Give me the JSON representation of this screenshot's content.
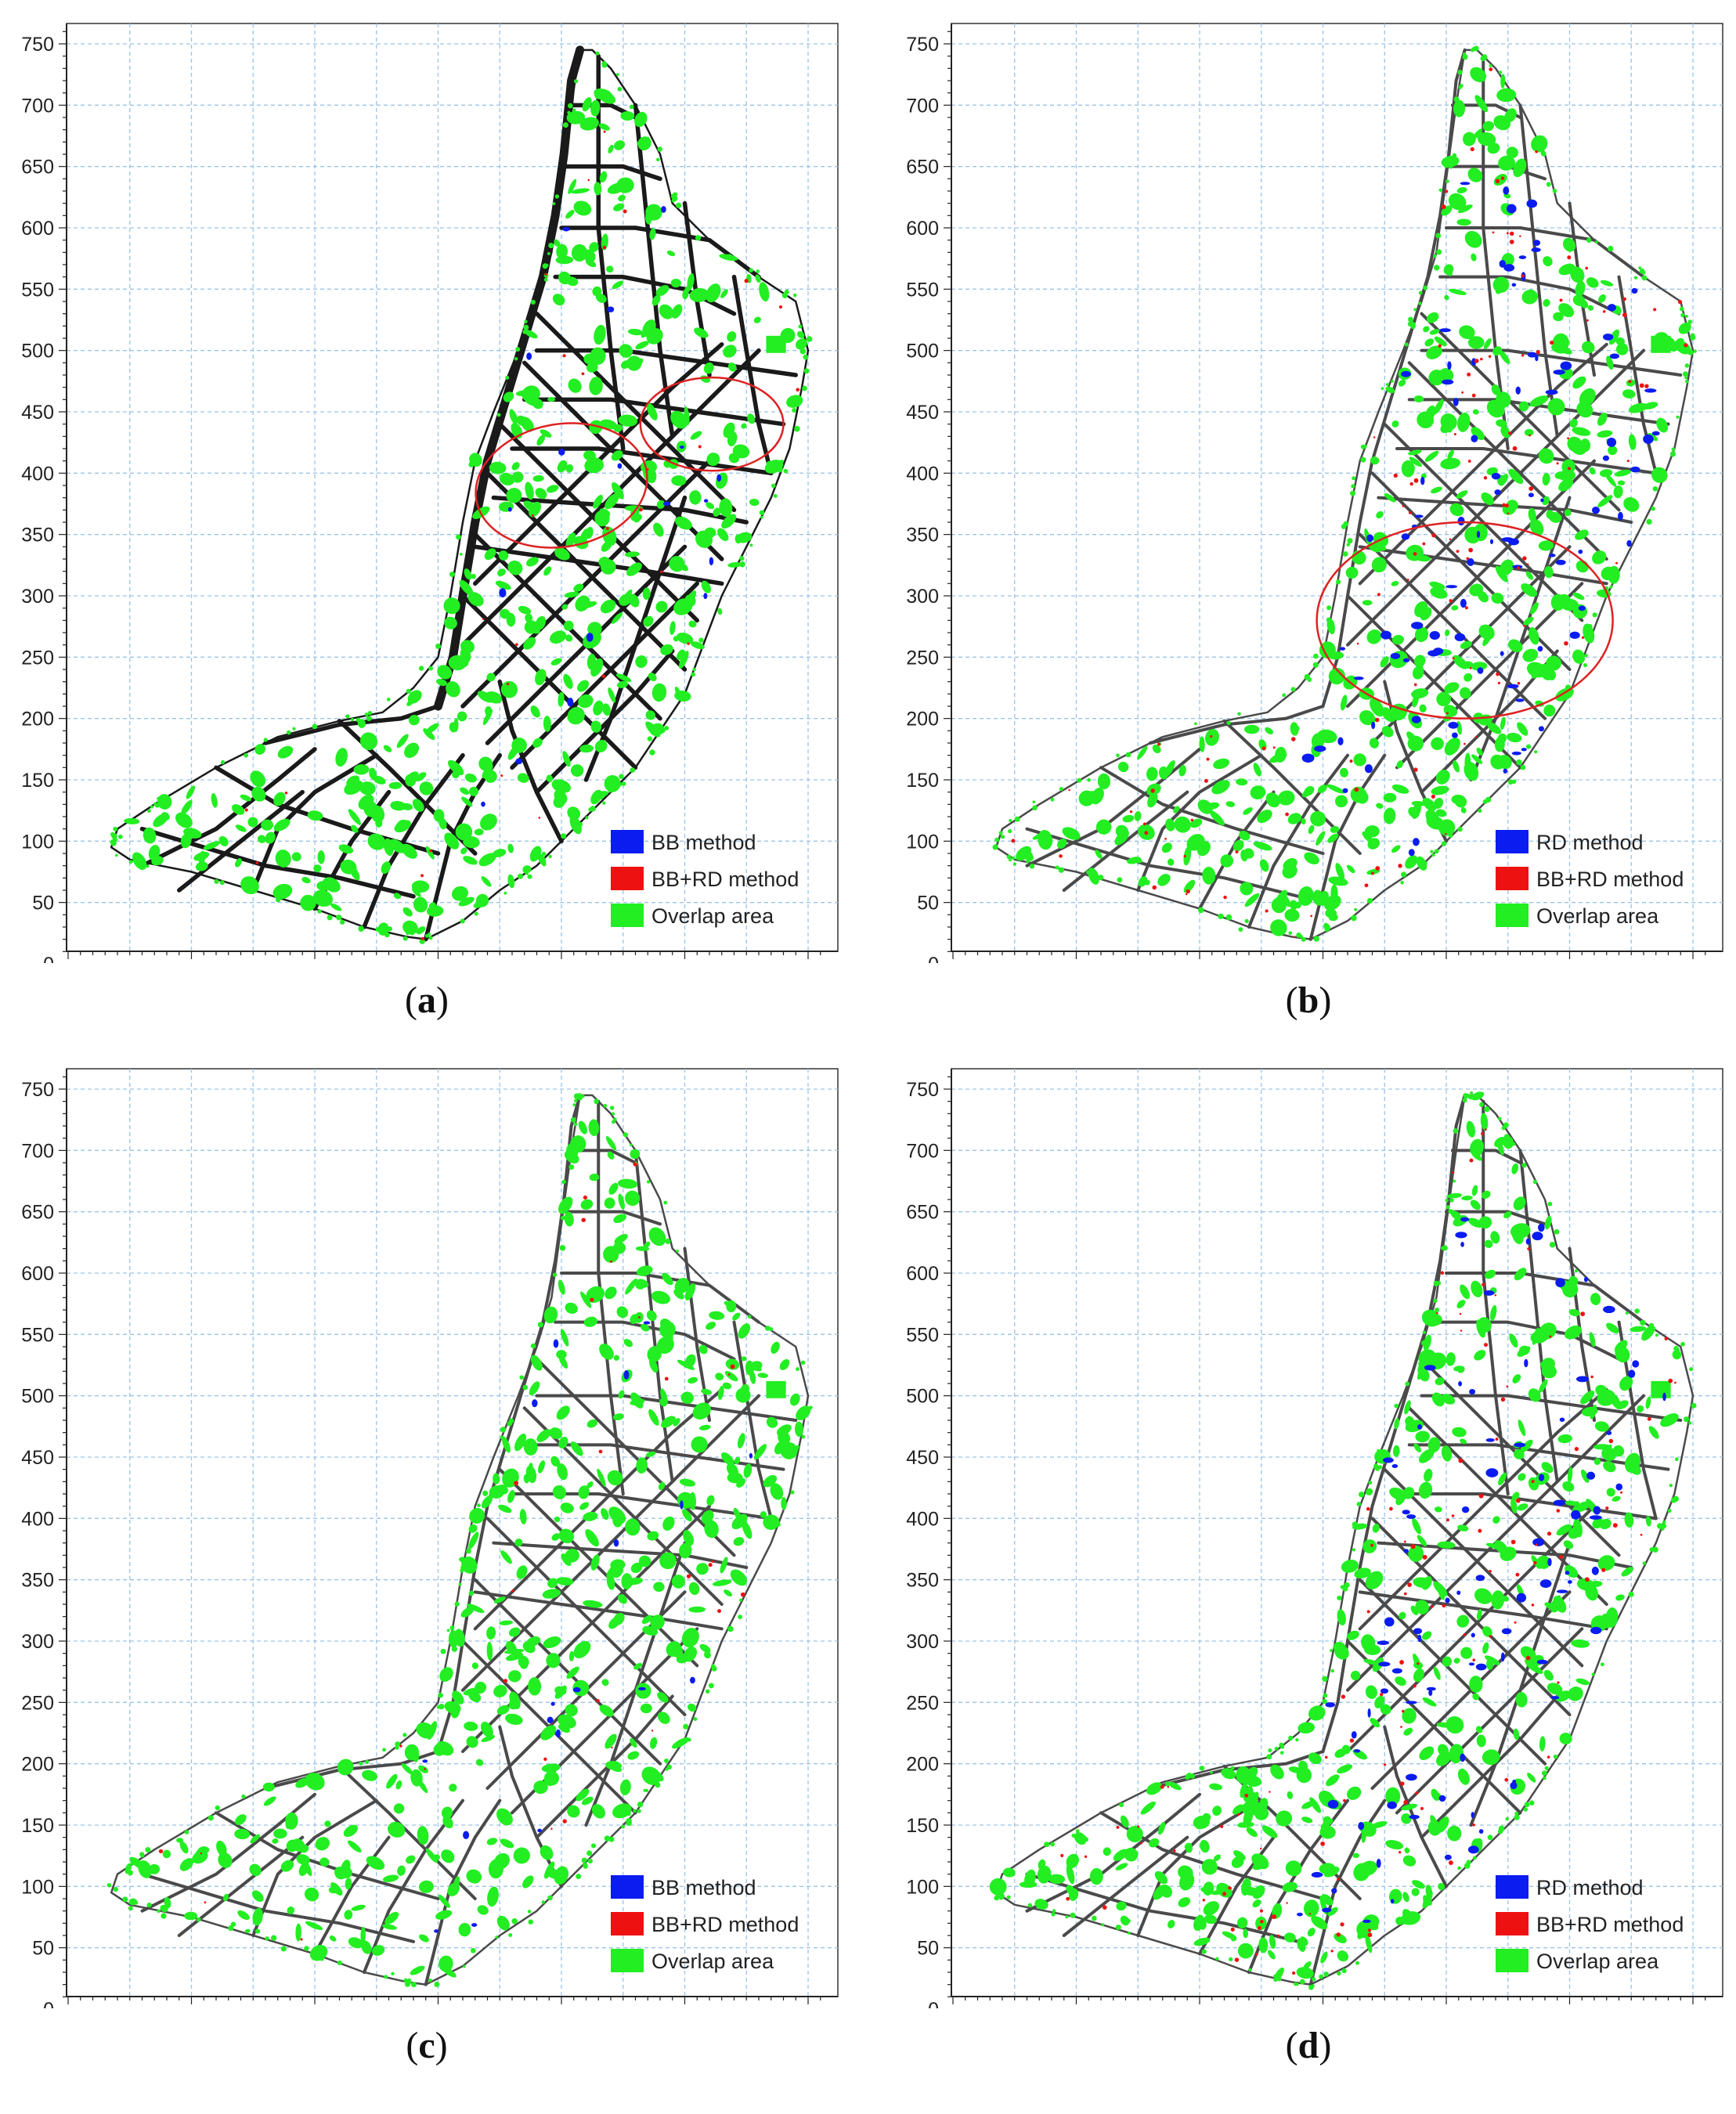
{
  "panels": [
    {
      "id": "a",
      "caption": "a",
      "legend": [
        {
          "label": "BB method",
          "color": "#0a1cf0"
        },
        {
          "label": "BB+RD method",
          "color": "#ee1111"
        },
        {
          "label": "Overlap area",
          "color": "#22ee22"
        }
      ],
      "ellipses": [
        {
          "cx": 400,
          "cy": 390,
          "rx": 70,
          "ry": 50,
          "rot": 10
        },
        {
          "cx": 522,
          "cy": 440,
          "rx": 58,
          "ry": 38,
          "rot": 0
        }
      ],
      "style": "bold"
    },
    {
      "id": "b",
      "caption": "b",
      "legend": [
        {
          "label": "RD method",
          "color": "#0a1cf0"
        },
        {
          "label": "BB+RD method",
          "color": "#ee1111"
        },
        {
          "label": "Overlap area",
          "color": "#22ee22"
        }
      ],
      "ellipses": [
        {
          "cx": 415,
          "cy": 280,
          "rx": 120,
          "ry": 80,
          "rot": 0
        }
      ],
      "style": "blue"
    },
    {
      "id": "c",
      "caption": "c",
      "legend": [
        {
          "label": "BB method",
          "color": "#0a1cf0"
        },
        {
          "label": "BB+RD method",
          "color": "#ee1111"
        },
        {
          "label": "Overlap area",
          "color": "#22ee22"
        }
      ],
      "ellipses": [],
      "style": "plain"
    },
    {
      "id": "d",
      "caption": "d",
      "legend": [
        {
          "label": "RD method",
          "color": "#0a1cf0"
        },
        {
          "label": "BB+RD method",
          "color": "#ee1111"
        },
        {
          "label": "Overlap area",
          "color": "#22ee22"
        }
      ],
      "ellipses": [],
      "style": "blue"
    }
  ],
  "axes": {
    "x_ticks": [
      0,
      100,
      200,
      300,
      400,
      500,
      600
    ],
    "y_ticks": [
      0,
      50,
      100,
      150,
      200,
      250,
      300,
      350,
      400,
      450,
      500,
      550,
      600,
      650,
      700,
      750
    ],
    "xlim": [
      0,
      620
    ],
    "ylim": [
      0,
      760
    ]
  },
  "colors": {
    "road": "#4a4a4a",
    "overlap": "#22ee22",
    "grid": "#9cc3e6",
    "highlight_circle": "#dd2222"
  }
}
